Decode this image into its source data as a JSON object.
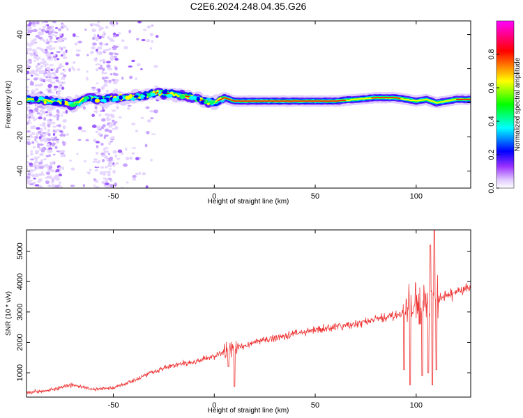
{
  "title": "C2E6.2024.248.04.35.G26",
  "chart_data": [
    {
      "type": "heatmap",
      "xlabel": "Height of straight line (km)",
      "ylabel": "Frequency (Hz)",
      "xlim": [
        -93,
        127
      ],
      "ylim": [
        -50,
        48
      ],
      "xticks": [
        -50,
        0,
        50,
        100
      ],
      "yticks": [
        -40,
        -20,
        0,
        20,
        40
      ],
      "colorbar": {
        "label": "Normalized spectral amplitude",
        "range": [
          0,
          1
        ],
        "ticks": [
          "0.0",
          "0.2",
          "0.4",
          "0.6",
          "0.8"
        ],
        "tick_values": [
          0.0,
          0.2,
          0.4,
          0.6,
          0.8
        ],
        "colors": [
          "#ffffff",
          "#9b30ff",
          "#0000ff",
          "#00ffff",
          "#00ff00",
          "#ffff00",
          "#ff0000",
          "#ff00ff"
        ]
      },
      "ridge": [
        [
          -88,
          2
        ],
        [
          -80,
          1
        ],
        [
          -70,
          -1
        ],
        [
          -62,
          3
        ],
        [
          -55,
          2
        ],
        [
          -45,
          3
        ],
        [
          -35,
          4
        ],
        [
          -28,
          6
        ],
        [
          -20,
          5
        ],
        [
          -10,
          3
        ],
        [
          -5,
          1
        ],
        [
          0,
          0
        ],
        [
          5,
          3
        ],
        [
          10,
          1
        ],
        [
          20,
          1
        ],
        [
          40,
          1
        ],
        [
          60,
          1
        ],
        [
          70,
          2
        ],
        [
          80,
          3
        ],
        [
          90,
          3
        ],
        [
          100,
          1
        ],
        [
          105,
          2
        ],
        [
          110,
          0
        ],
        [
          120,
          2
        ],
        [
          127,
          2
        ]
      ]
    },
    {
      "type": "line",
      "xlabel": "Height of straight line (km)",
      "ylabel": "SNR (10 * v/v)",
      "xlim": [
        -93,
        127
      ],
      "ylim": [
        200,
        5700
      ],
      "xticks": [
        -50,
        0,
        50,
        100
      ],
      "yticks": [
        1000,
        2000,
        3000,
        4000,
        5000
      ],
      "color": "#ee3333",
      "trend": [
        [
          -93,
          350
        ],
        [
          -80,
          450
        ],
        [
          -70,
          600
        ],
        [
          -60,
          450
        ],
        [
          -50,
          500
        ],
        [
          -40,
          750
        ],
        [
          -30,
          1050
        ],
        [
          -20,
          1250
        ],
        [
          -10,
          1350
        ],
        [
          0,
          1550
        ],
        [
          5,
          1700
        ],
        [
          10,
          1800
        ],
        [
          20,
          2000
        ],
        [
          30,
          2150
        ],
        [
          40,
          2300
        ],
        [
          50,
          2400
        ],
        [
          60,
          2500
        ],
        [
          70,
          2600
        ],
        [
          80,
          2750
        ],
        [
          90,
          2900
        ],
        [
          95,
          3050
        ],
        [
          100,
          3200
        ],
        [
          105,
          3300
        ],
        [
          110,
          3400
        ],
        [
          120,
          3650
        ],
        [
          127,
          3800
        ]
      ],
      "events": [
        [
          7,
          1200
        ],
        [
          10,
          550
        ],
        [
          94,
          1100
        ],
        [
          97,
          600
        ],
        [
          99,
          3200
        ],
        [
          103,
          900
        ],
        [
          106,
          1000
        ],
        [
          107,
          5200
        ],
        [
          108,
          600
        ],
        [
          109,
          5700
        ],
        [
          110,
          1100
        ]
      ]
    }
  ]
}
